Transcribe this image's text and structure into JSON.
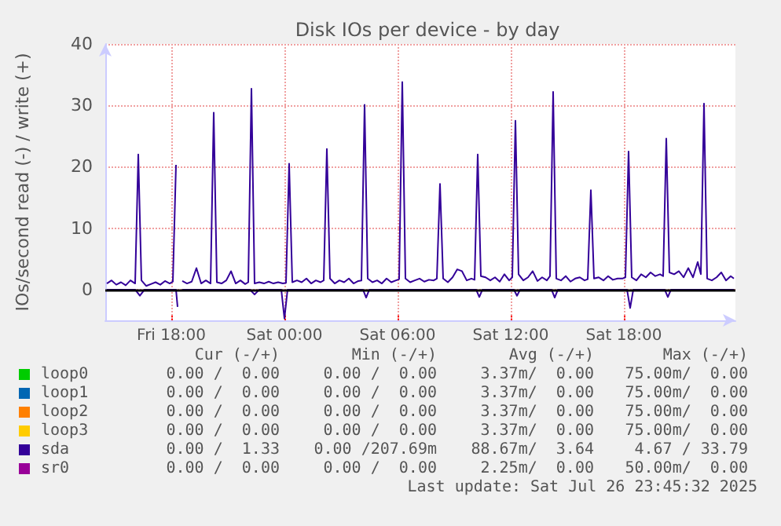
{
  "chart_data": {
    "type": "line",
    "title": "Disk IOs per device - by day",
    "ylabel": "IOs/second read (-) / write (+)",
    "xlim": [
      "2025-07-25T14:30",
      "2025-07-26T23:55"
    ],
    "xticks": [
      {
        "value": "2025-07-25T18:00",
        "label": "Fri 18:00"
      },
      {
        "value": "2025-07-26T00:00",
        "label": "Sat 00:00"
      },
      {
        "value": "2025-07-26T06:00",
        "label": "Sat 06:00"
      },
      {
        "value": "2025-07-26T12:00",
        "label": "Sat 12:00"
      },
      {
        "value": "2025-07-26T18:00",
        "label": "Sat 18:00"
      }
    ],
    "ylim": [
      -5,
      40
    ],
    "yticks": [
      0,
      10,
      20,
      30,
      40
    ],
    "grid": true,
    "legend": "bottom",
    "marker": "none",
    "line_style": "solid",
    "ref_lines": [
      {
        "axis": "y",
        "value": 0,
        "color": "#000000"
      }
    ],
    "series": [
      {
        "name": "loop0",
        "color": "#00cc00"
      },
      {
        "name": "loop1",
        "color": "#0066b3"
      },
      {
        "name": "loop2",
        "color": "#ff8000"
      },
      {
        "name": "loop3",
        "color": "#ffcc00"
      },
      {
        "name": "sda",
        "color": "#330099",
        "x": [
          "2025-07-25T14:35",
          "2025-07-25T14:50",
          "2025-07-25T15:05",
          "2025-07-25T15:20",
          "2025-07-25T15:35",
          "2025-07-25T15:50",
          "2025-07-25T16:05",
          "2025-07-25T16:15",
          "2025-07-25T16:25",
          "2025-07-25T16:40",
          "2025-07-25T16:55",
          "2025-07-25T17:10",
          "2025-07-25T17:25",
          "2025-07-25T17:40",
          "2025-07-25T17:55",
          "2025-07-25T18:05",
          "2025-07-25T18:15",
          "2025-07-25T18:25",
          "2025-07-25T18:35",
          "2025-07-25T18:50",
          "2025-07-25T19:05",
          "2025-07-25T19:20",
          "2025-07-25T19:35",
          "2025-07-25T19:50",
          "2025-07-25T20:05",
          "2025-07-25T20:15",
          "2025-07-25T20:25",
          "2025-07-25T20:40",
          "2025-07-25T20:55",
          "2025-07-25T21:10",
          "2025-07-25T21:25",
          "2025-07-25T21:40",
          "2025-07-25T21:55",
          "2025-07-25T22:05",
          "2025-07-25T22:15",
          "2025-07-25T22:25",
          "2025-07-25T22:40",
          "2025-07-25T22:55",
          "2025-07-25T23:10",
          "2025-07-25T23:25",
          "2025-07-25T23:40",
          "2025-07-25T23:55",
          "2025-07-26T00:05",
          "2025-07-26T00:15",
          "2025-07-26T00:25",
          "2025-07-26T00:40",
          "2025-07-26T00:55",
          "2025-07-26T01:10",
          "2025-07-26T01:25",
          "2025-07-26T01:40",
          "2025-07-26T01:55",
          "2025-07-26T02:05",
          "2025-07-26T02:15",
          "2025-07-26T02:25",
          "2025-07-26T02:40",
          "2025-07-26T02:55",
          "2025-07-26T03:10",
          "2025-07-26T03:25",
          "2025-07-26T03:40",
          "2025-07-26T03:55",
          "2025-07-26T04:05",
          "2025-07-26T04:15",
          "2025-07-26T04:25",
          "2025-07-26T04:40",
          "2025-07-26T04:55",
          "2025-07-26T05:10",
          "2025-07-26T05:25",
          "2025-07-26T05:40",
          "2025-07-26T05:55",
          "2025-07-26T06:05",
          "2025-07-26T06:15",
          "2025-07-26T06:25",
          "2025-07-26T06:40",
          "2025-07-26T06:55",
          "2025-07-26T07:10",
          "2025-07-26T07:25",
          "2025-07-26T07:40",
          "2025-07-26T07:55",
          "2025-07-26T08:05",
          "2025-07-26T08:15",
          "2025-07-26T08:25",
          "2025-07-26T08:40",
          "2025-07-26T08:55",
          "2025-07-26T09:10",
          "2025-07-26T09:25",
          "2025-07-26T09:40",
          "2025-07-26T09:55",
          "2025-07-26T10:05",
          "2025-07-26T10:15",
          "2025-07-26T10:25",
          "2025-07-26T10:40",
          "2025-07-26T10:55",
          "2025-07-26T11:10",
          "2025-07-26T11:25",
          "2025-07-26T11:40",
          "2025-07-26T11:55",
          "2025-07-26T12:05",
          "2025-07-26T12:15",
          "2025-07-26T12:25",
          "2025-07-26T12:40",
          "2025-07-26T12:55",
          "2025-07-26T13:10",
          "2025-07-26T13:25",
          "2025-07-26T13:40",
          "2025-07-26T13:55",
          "2025-07-26T14:05",
          "2025-07-26T14:15",
          "2025-07-26T14:25",
          "2025-07-26T14:40",
          "2025-07-26T14:55",
          "2025-07-26T15:10",
          "2025-07-26T15:25",
          "2025-07-26T15:40",
          "2025-07-26T15:55",
          "2025-07-26T16:05",
          "2025-07-26T16:15",
          "2025-07-26T16:25",
          "2025-07-26T16:40",
          "2025-07-26T16:55",
          "2025-07-26T17:10",
          "2025-07-26T17:25",
          "2025-07-26T17:40",
          "2025-07-26T17:55",
          "2025-07-26T18:05",
          "2025-07-26T18:15",
          "2025-07-26T18:25",
          "2025-07-26T18:40",
          "2025-07-26T18:55",
          "2025-07-26T19:10",
          "2025-07-26T19:25",
          "2025-07-26T19:40",
          "2025-07-26T19:55",
          "2025-07-26T20:05",
          "2025-07-26T20:15",
          "2025-07-26T20:25",
          "2025-07-26T20:40",
          "2025-07-26T20:55",
          "2025-07-26T21:10",
          "2025-07-26T21:25",
          "2025-07-26T21:40",
          "2025-07-26T21:55",
          "2025-07-26T22:05",
          "2025-07-26T22:15",
          "2025-07-26T22:25",
          "2025-07-26T22:40",
          "2025-07-26T22:55",
          "2025-07-26T23:10",
          "2025-07-26T23:25",
          "2025-07-26T23:40",
          "2025-07-26T23:50"
        ],
        "values": [
          1.0,
          1.5,
          0.8,
          1.2,
          0.7,
          1.5,
          1.0,
          22.0,
          1.5,
          0.6,
          0.9,
          1.2,
          0.8,
          1.4,
          1.0,
          1.3,
          20.3,
          null,
          1.4,
          1.0,
          1.3,
          3.5,
          1.0,
          1.5,
          1.0,
          28.8,
          1.2,
          1.0,
          1.5,
          3.0,
          1.0,
          1.5,
          0.9,
          1.2,
          32.7,
          1.0,
          1.2,
          1.0,
          1.3,
          1.0,
          1.2,
          1.0,
          1.1,
          20.5,
          1.2,
          1.5,
          1.2,
          1.8,
          1.0,
          1.5,
          1.2,
          1.5,
          22.9,
          1.8,
          1.0,
          1.5,
          1.2,
          1.8,
          1.0,
          1.4,
          1.5,
          30.1,
          1.8,
          1.2,
          1.5,
          1.0,
          1.8,
          1.2,
          1.5,
          1.7,
          33.8,
          1.8,
          1.2,
          1.5,
          1.8,
          1.3,
          1.6,
          1.5,
          1.8,
          17.2,
          1.8,
          1.2,
          2.0,
          3.3,
          3.0,
          1.5,
          1.8,
          1.6,
          22.0,
          2.2,
          2.0,
          1.5,
          2.0,
          1.3,
          2.5,
          1.5,
          2.0,
          27.5,
          2.5,
          1.5,
          2.0,
          3.0,
          1.4,
          2.0,
          1.5,
          2.2,
          32.2,
          1.8,
          1.5,
          2.2,
          1.3,
          1.8,
          2.0,
          1.5,
          1.7,
          16.2,
          1.8,
          2.0,
          1.5,
          2.2,
          1.6,
          1.8,
          1.8,
          2.0,
          22.5,
          2.0,
          1.5,
          2.5,
          2.0,
          2.8,
          2.2,
          2.5,
          2.2,
          24.6,
          2.8,
          2.5,
          3.0,
          2.0,
          3.5,
          2.0,
          4.5,
          2.5,
          30.3,
          1.8,
          1.5,
          2.0,
          2.8,
          1.5,
          2.2,
          1.8
        ]
      },
      {
        "color": "#330099",
        "x": [
          "2025-07-25T14:35",
          "2025-07-25T16:05",
          "2025-07-25T16:20",
          "2025-07-25T16:35",
          "2025-07-25T18:15",
          "2025-07-25T18:20",
          "2025-07-25T18:25",
          "2025-07-25T18:35",
          "2025-07-25T22:10",
          "2025-07-25T22:25",
          "2025-07-25T22:40",
          "2025-07-25T23:50",
          "2025-07-26T00:00",
          "2025-07-26T00:10",
          "2025-07-26T04:10",
          "2025-07-26T04:20",
          "2025-07-26T04:30",
          "2025-07-26T10:10",
          "2025-07-26T10:20",
          "2025-07-26T10:30",
          "2025-07-26T12:10",
          "2025-07-26T12:20",
          "2025-07-26T12:30",
          "2025-07-26T14:10",
          "2025-07-26T14:20",
          "2025-07-26T14:30",
          "2025-07-26T18:10",
          "2025-07-26T18:20",
          "2025-07-26T18:30",
          "2025-07-26T20:10",
          "2025-07-26T20:20",
          "2025-07-26T20:30",
          "2025-07-26T23:50"
        ],
        "values": [
          0,
          0,
          -1.0,
          0,
          0,
          -2.8,
          null,
          0,
          0,
          -0.8,
          0,
          0,
          -4.7,
          0,
          0,
          -1.3,
          0,
          0,
          -1.2,
          0,
          0,
          -1.0,
          0,
          0,
          -1.3,
          0,
          0,
          -3.0,
          0,
          0,
          -1.2,
          0,
          0
        ]
      },
      {
        "name": "sr0",
        "color": "#990099"
      }
    ],
    "annotations": [
      "Cur (-/+)",
      "Min (-/+)",
      "Avg (-/+)",
      "Max (-/+)",
      "0.00 /  0.00",
      "0.00 /  0.00",
      "3.37m/  0.00",
      "75.00m/  0.00",
      "0.00 /  0.00",
      "0.00 /  0.00",
      "3.37m/  0.00",
      "75.00m/  0.00",
      "0.00 /  0.00",
      "0.00 /  0.00",
      "3.37m/  0.00",
      "75.00m/  0.00",
      "0.00 /  0.00",
      "0.00 /  0.00",
      "3.37m/  0.00",
      "75.00m/  0.00",
      "0.00 /  1.33",
      "0.00 /207.69m",
      "88.67m/  3.64",
      "4.67 / 33.79",
      "0.00 /  0.00",
      "0.00 /  0.00",
      "2.25m/  0.00",
      "50.00m/  0.00",
      "Last update: Sat Jul 26 23:45:32 2025"
    ]
  }
}
